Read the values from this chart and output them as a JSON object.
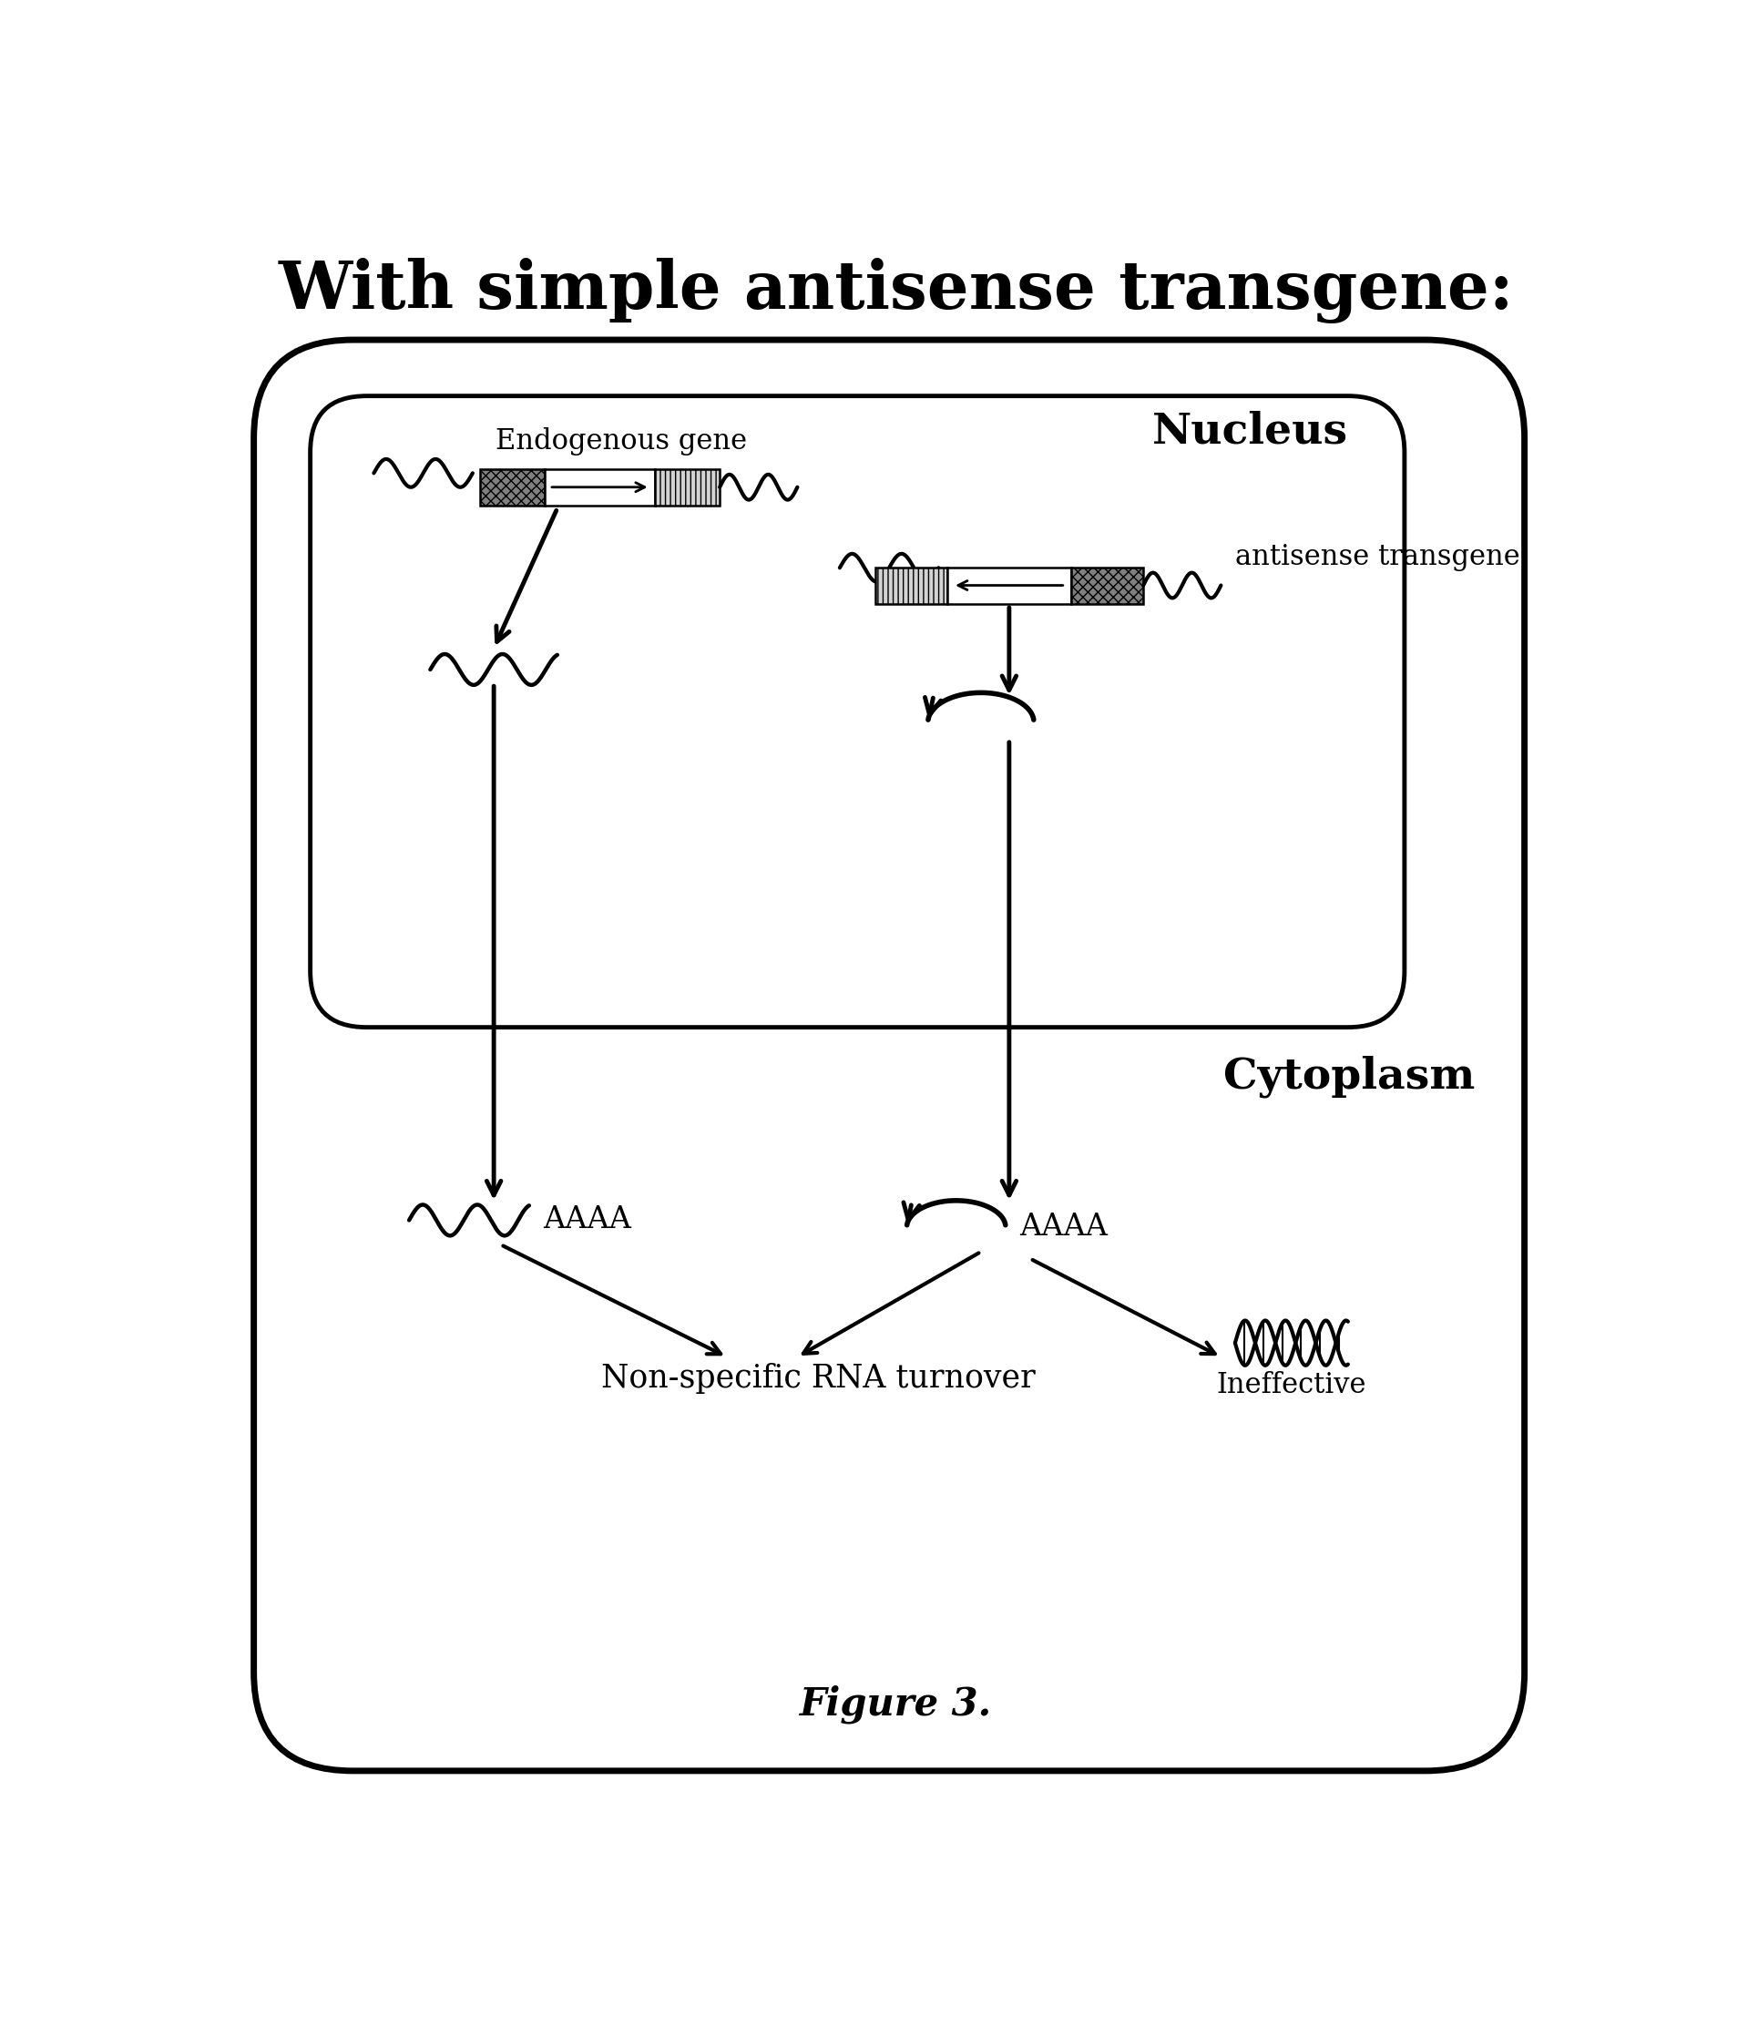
{
  "title": "With simple antisense transgene:",
  "figure_label": "Figure 3.",
  "bg_color": "#ffffff",
  "nucleus_label": "Nucleus",
  "cytoplasm_label": "Cytoplasm",
  "endogenous_gene_label": "Endogenous gene",
  "antisense_transgene_label": "antisense transgene",
  "aaaa_label": "AAAA",
  "nonspecific_label": "Non-specific RNA turnover",
  "ineffective_label": "Ineffective",
  "title_fontsize": 52,
  "figure_label_fontsize": 30,
  "nucleus_fontsize": 34,
  "cytoplasm_fontsize": 34,
  "label_fontsize": 22,
  "gene_label_fontsize": 22
}
